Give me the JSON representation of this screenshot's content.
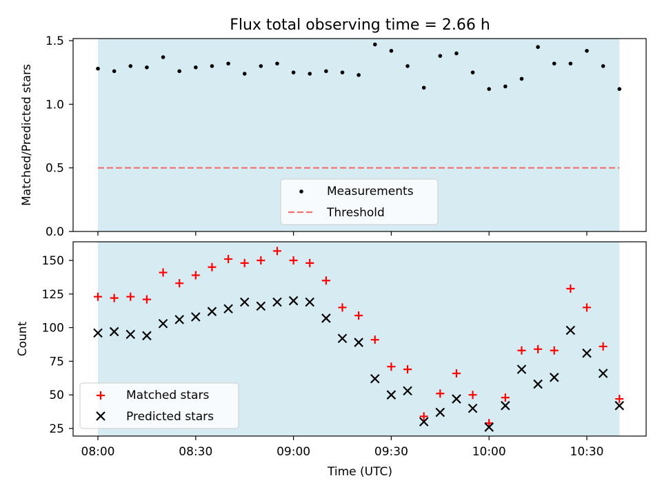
{
  "chart_data": [
    {
      "type": "scatter",
      "title": "Flux total observing time = 2.66 h",
      "xlabel": "",
      "ylabel": "Matched/Predicted stars",
      "ylim": [
        0,
        1.5
      ],
      "yticks": [
        "0.0",
        "0.5",
        "1.0",
        "1.5"
      ],
      "shaded_span": [
        "08:00",
        "10:40"
      ],
      "grid": false,
      "legend_position": "lower-center",
      "x": [
        "08:00",
        "08:05",
        "08:10",
        "08:15",
        "08:20",
        "08:25",
        "08:30",
        "08:35",
        "08:40",
        "08:45",
        "08:50",
        "08:55",
        "09:00",
        "09:05",
        "09:10",
        "09:15",
        "09:20",
        "09:25",
        "09:30",
        "09:35",
        "09:40",
        "09:45",
        "09:50",
        "09:55",
        "10:00",
        "10:05",
        "10:10",
        "10:15",
        "10:20",
        "10:25",
        "10:30",
        "10:35",
        "10:40"
      ],
      "series": [
        {
          "name": "Measurements",
          "marker": "dot",
          "color": "#000000",
          "values": [
            1.28,
            1.26,
            1.3,
            1.29,
            1.37,
            1.26,
            1.29,
            1.3,
            1.32,
            1.24,
            1.3,
            1.32,
            1.25,
            1.24,
            1.26,
            1.25,
            1.23,
            1.47,
            1.42,
            1.3,
            1.13,
            1.38,
            1.4,
            1.25,
            1.12,
            1.14,
            1.2,
            1.45,
            1.32,
            1.32,
            1.42,
            1.3,
            1.12
          ]
        },
        {
          "name": "Threshold",
          "style": "dashed",
          "color": "#f07070",
          "values": [
            0.5,
            0.5
          ]
        }
      ]
    },
    {
      "type": "scatter",
      "title": "",
      "xlabel": "Time (UTC)",
      "ylabel": "Count",
      "ylim": [
        19,
        164
      ],
      "yticks": [
        "25",
        "50",
        "75",
        "100",
        "125",
        "150"
      ],
      "xticks": [
        "08:00",
        "08:30",
        "09:00",
        "09:30",
        "10:00",
        "10:30"
      ],
      "shaded_span": [
        "08:00",
        "10:40"
      ],
      "grid": false,
      "legend_position": "lower-left",
      "x": [
        "08:00",
        "08:05",
        "08:10",
        "08:15",
        "08:20",
        "08:25",
        "08:30",
        "08:35",
        "08:40",
        "08:45",
        "08:50",
        "08:55",
        "09:00",
        "09:05",
        "09:10",
        "09:15",
        "09:20",
        "09:25",
        "09:30",
        "09:35",
        "09:40",
        "09:45",
        "09:50",
        "09:55",
        "10:00",
        "10:05",
        "10:10",
        "10:15",
        "10:20",
        "10:25",
        "10:30",
        "10:35",
        "10:40"
      ],
      "series": [
        {
          "name": "Matched stars",
          "marker": "plus",
          "color": "#ff0000",
          "values": [
            123,
            122,
            123,
            121,
            141,
            133,
            139,
            145,
            151,
            148,
            150,
            157,
            150,
            148,
            135,
            115,
            109,
            91,
            71,
            69,
            34,
            51,
            66,
            50,
            29,
            48,
            83,
            84,
            83,
            129,
            115,
            86,
            47
          ]
        },
        {
          "name": "Predicted stars",
          "marker": "x",
          "color": "#000000",
          "values": [
            96,
            97,
            95,
            94,
            103,
            106,
            108,
            112,
            114,
            119,
            116,
            119,
            120,
            119,
            107,
            92,
            89,
            62,
            50,
            53,
            30,
            37,
            47,
            40,
            26,
            42,
            69,
            58,
            63,
            98,
            81,
            66,
            42
          ]
        }
      ]
    }
  ],
  "colors": {
    "span_fill": "#add8e6",
    "threshold": "#f07070",
    "matched": "#ff0000",
    "predicted": "#000000"
  }
}
